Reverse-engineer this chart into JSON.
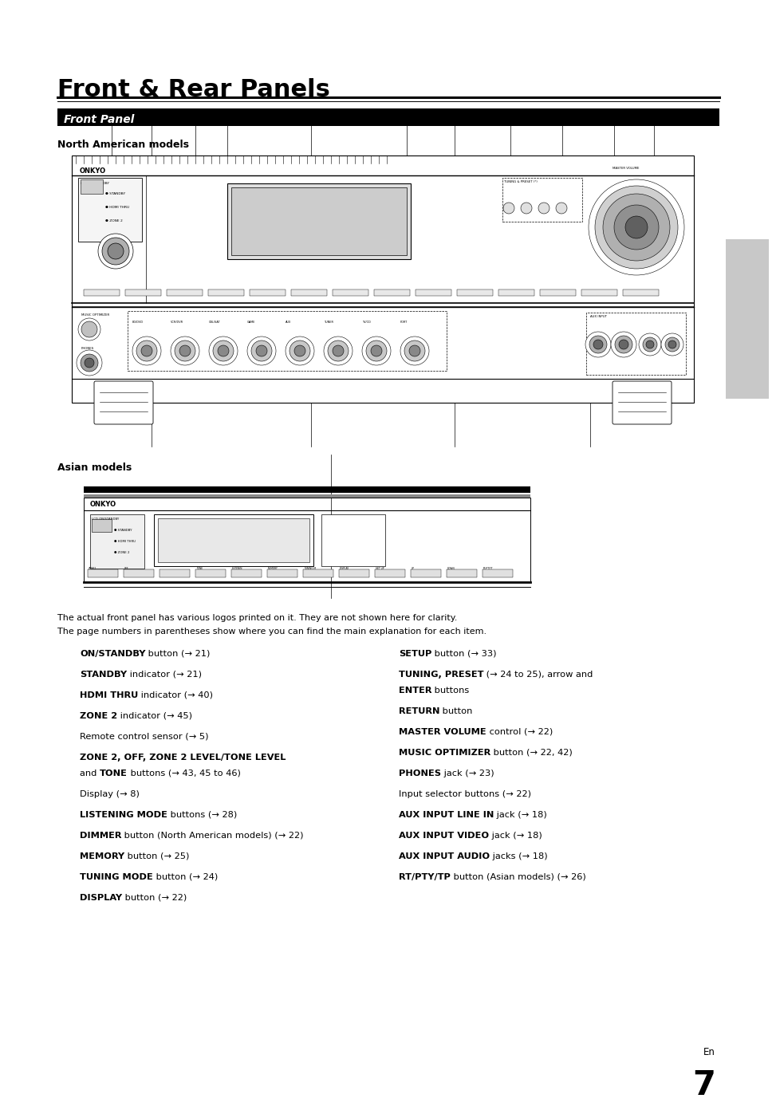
{
  "title": "Front & Rear Panels",
  "section_header": "Front Panel",
  "subtitle_na": "North American models",
  "subtitle_asian": "Asian models",
  "note_line1": "The actual front panel has various logos printed on it. They are not shown here for clarity.",
  "note_line2": "The page numbers in parentheses show where you can find the main explanation for each item.",
  "left_items": [
    {
      "bold": "ON/STANDBY",
      "normal": " button (→ 21)",
      "multiline": false
    },
    {
      "bold": "STANDBY",
      "normal": " indicator (→ 21)",
      "multiline": false
    },
    {
      "bold": "HDMI THRU",
      "normal": " indicator (→ 40)",
      "multiline": false
    },
    {
      "bold": "ZONE 2",
      "normal": " indicator (→ 45)",
      "multiline": false
    },
    {
      "bold": "",
      "normal": "Remote control sensor (→ 5)",
      "multiline": false
    },
    {
      "bold": "ZONE 2, OFF, ZONE 2 LEVEL/TONE LEVEL",
      "normal": "",
      "line2_pre": "and ",
      "line2_bold": "TONE",
      "line2_post": " buttons (→ 43, 45 to 46)",
      "multiline": true
    },
    {
      "bold": "",
      "normal": "Display (→ 8)",
      "multiline": false
    },
    {
      "bold": "LISTENING MODE",
      "normal": " buttons (→ 28)",
      "multiline": false
    },
    {
      "bold": "DIMMER",
      "normal": " button (North American models) (→ 22)",
      "multiline": false
    },
    {
      "bold": "MEMORY",
      "normal": " button (→ 25)",
      "multiline": false
    },
    {
      "bold": "TUNING MODE",
      "normal": " button (→ 24)",
      "multiline": false
    },
    {
      "bold": "DISPLAY",
      "normal": " button (→ 22)",
      "multiline": false
    }
  ],
  "right_items": [
    {
      "bold": "SETUP",
      "normal": " button (→ 33)",
      "multiline": false
    },
    {
      "bold": "TUNING, PRESET",
      "normal": " (→ 24 to 25), arrow and",
      "line2_pre": "",
      "line2_bold": "ENTER",
      "line2_post": " buttons",
      "multiline": true
    },
    {
      "bold": "RETURN",
      "normal": " button",
      "multiline": false
    },
    {
      "bold": "MASTER VOLUME",
      "normal": " control (→ 22)",
      "multiline": false
    },
    {
      "bold": "MUSIC OPTIMIZER",
      "normal": " button (→ 22, 42)",
      "multiline": false
    },
    {
      "bold": "PHONES",
      "normal": " jack (→ 23)",
      "multiline": false
    },
    {
      "bold": "",
      "normal": "Input selector buttons (→ 22)",
      "multiline": false
    },
    {
      "bold": "AUX INPUT LINE IN",
      "normal": " jack (→ 18)",
      "multiline": false
    },
    {
      "bold": "AUX INPUT VIDEO",
      "normal": " jack (→ 18)",
      "multiline": false
    },
    {
      "bold": "AUX INPUT AUDIO",
      "normal": " jacks (→ 18)",
      "multiline": false
    },
    {
      "bold": "RT/PTY/TP",
      "normal": " button (Asian models) (→ 26)",
      "multiline": false
    }
  ],
  "page_num": "7",
  "en_label": "En",
  "bg_color": "#ffffff",
  "header_bg": "#000000",
  "header_fg": "#ffffff",
  "sidebar_color": "#c8c8c8"
}
